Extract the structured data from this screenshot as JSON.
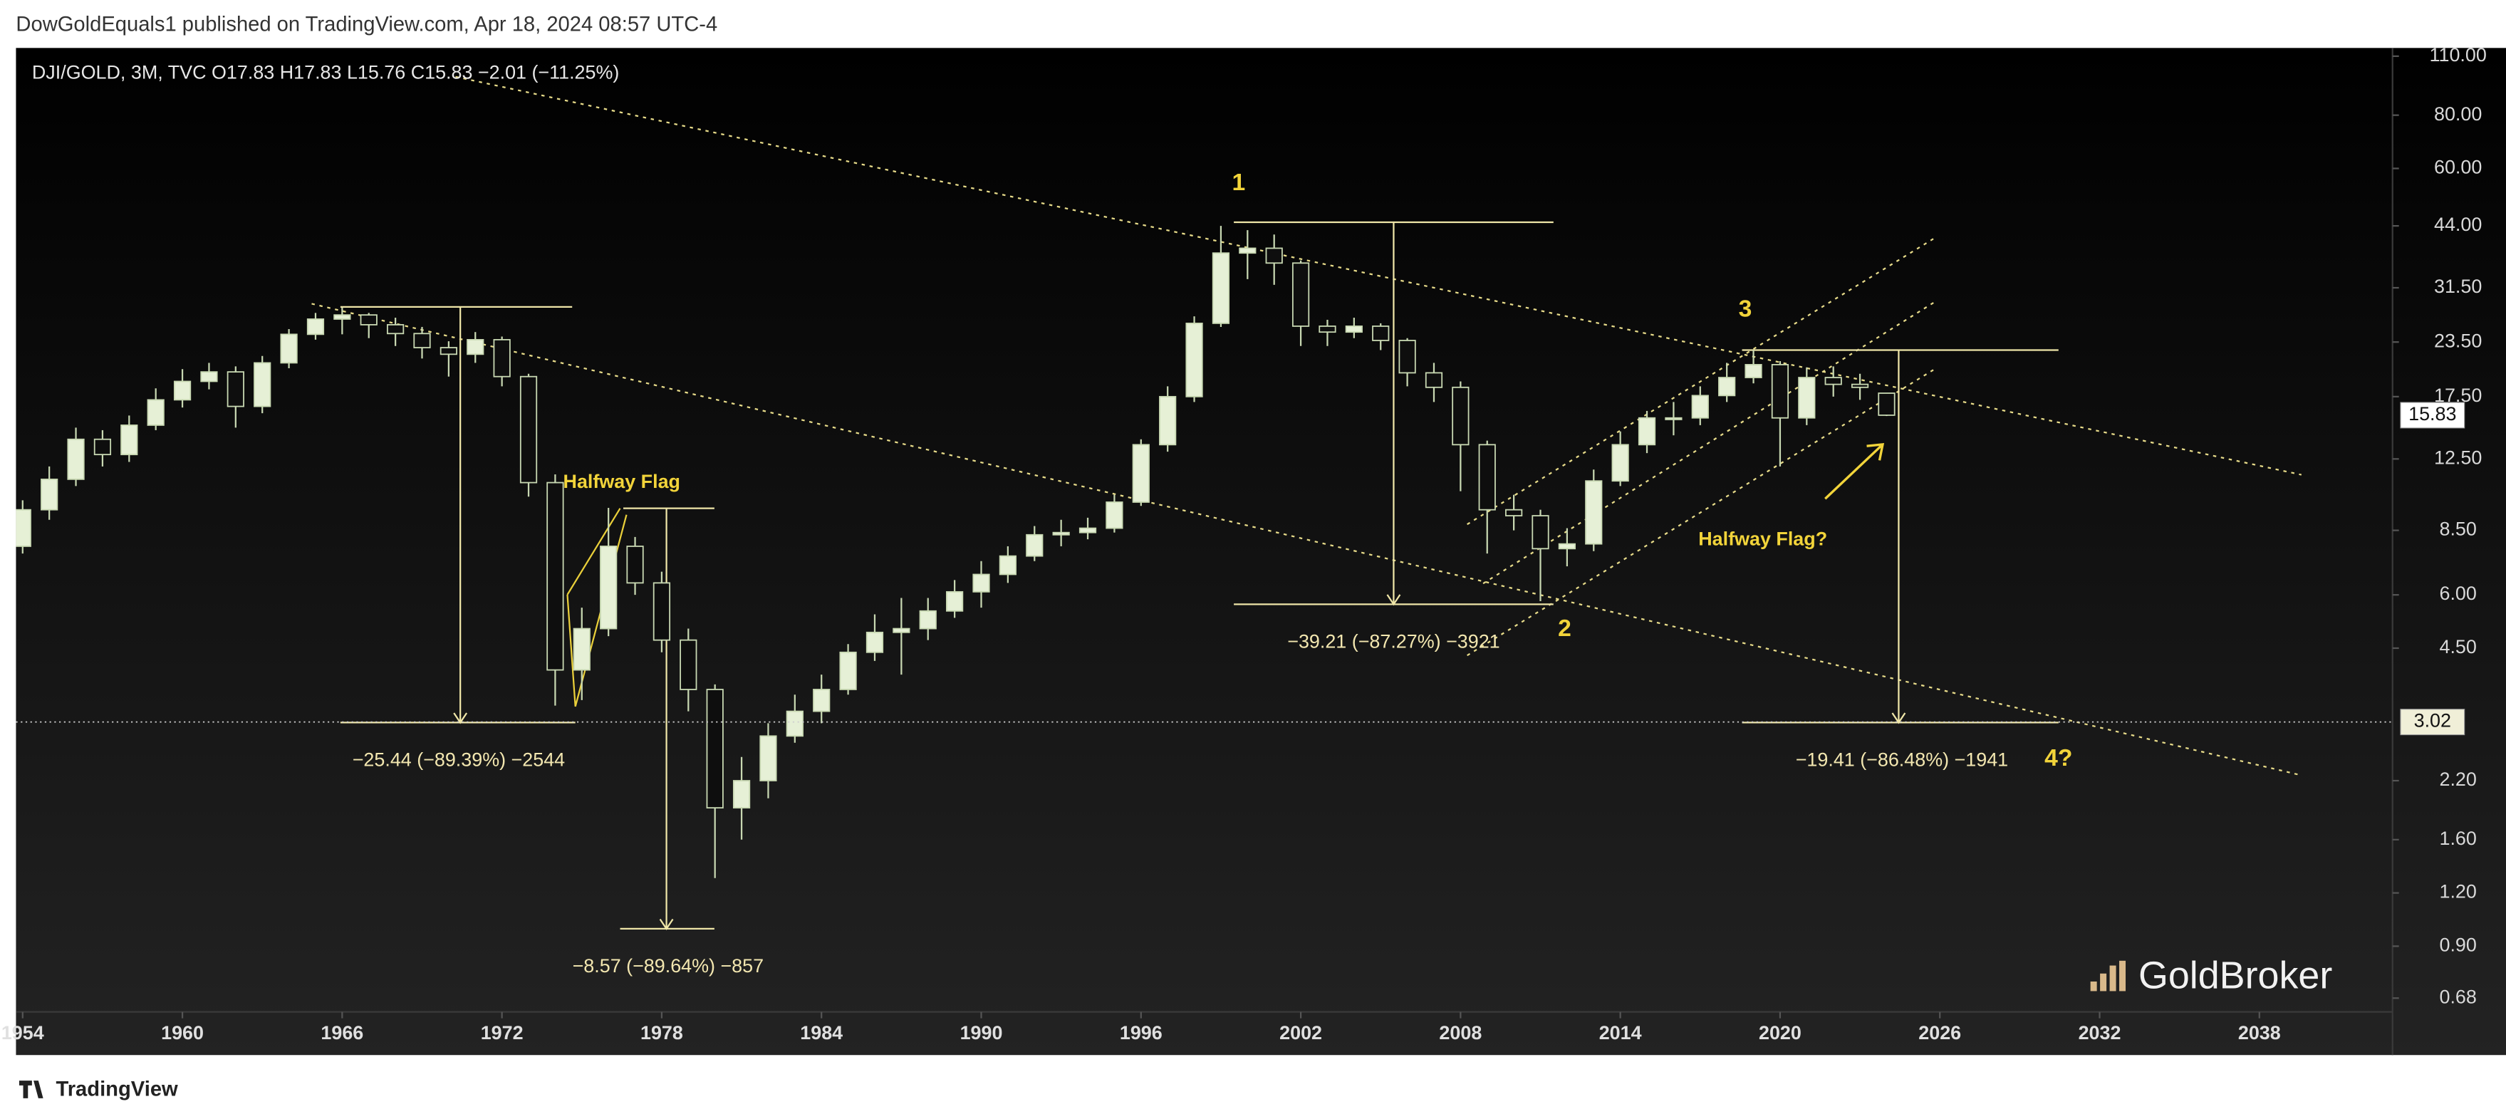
{
  "header": "DowGoldEquals1 published on TradingView.com, Apr 18, 2024 08:57 UTC-4",
  "footer": "TradingView",
  "watermark": "GoldBroker",
  "chart_data": {
    "type": "candlestick",
    "legend": "DJI/GOLD, 3M, TVC  O17.83  H17.83  L15.76  C15.83  −2.01 (−11.25%)",
    "x": [
      1954,
      1955,
      1956,
      1957,
      1958,
      1959,
      1960,
      1961,
      1962,
      1963,
      1964,
      1965,
      1966,
      1967,
      1968,
      1969,
      1970,
      1971,
      1972,
      1973,
      1974,
      1975,
      1976,
      1977,
      1978,
      1979,
      1980,
      1981,
      1982,
      1983,
      1984,
      1985,
      1986,
      1987,
      1988,
      1989,
      1990,
      1991,
      1992,
      1993,
      1994,
      1995,
      1996,
      1997,
      1998,
      1999,
      2000,
      2001,
      2002,
      2003,
      2004,
      2005,
      2006,
      2007,
      2008,
      2009,
      2010,
      2011,
      2012,
      2013,
      2014,
      2015,
      2016,
      2017,
      2018,
      2019,
      2020,
      2021,
      2022,
      2023,
      2024
    ],
    "open": [
      7.8,
      9.5,
      11.2,
      13.9,
      12.8,
      15.0,
      17.2,
      19.0,
      20.0,
      16.6,
      21.0,
      24.5,
      26.6,
      27.2,
      25.8,
      24.6,
      22.8,
      22.0,
      23.8,
      19.5,
      11.0,
      4.0,
      5.0,
      7.8,
      6.4,
      4.7,
      3.6,
      1.9,
      2.2,
      2.8,
      3.2,
      3.6,
      4.4,
      4.9,
      5.0,
      5.5,
      6.1,
      6.7,
      7.4,
      8.3,
      8.4,
      8.6,
      9.9,
      13.5,
      17.5,
      26.0,
      38.0,
      39.0,
      36.0,
      25.6,
      24.8,
      25.6,
      23.7,
      19.9,
      18.4,
      13.5,
      9.5,
      9.2,
      7.7,
      7.9,
      11.1,
      13.5,
      15.6,
      15.6,
      17.6,
      19.4,
      20.8,
      15.6,
      19.4,
      18.7,
      17.83
    ],
    "high": [
      10.0,
      12.0,
      14.8,
      14.6,
      15.8,
      18.3,
      20.3,
      21.0,
      20.6,
      21.8,
      25.2,
      27.5,
      28.3,
      27.5,
      26.8,
      25.5,
      23.6,
      24.8,
      24.2,
      19.8,
      11.5,
      5.6,
      9.6,
      8.2,
      6.8,
      5.0,
      3.7,
      2.5,
      3.0,
      3.5,
      3.9,
      4.6,
      5.4,
      5.9,
      5.9,
      6.5,
      7.2,
      7.8,
      8.7,
      9.0,
      9.1,
      10.3,
      13.9,
      18.5,
      27.0,
      44.0,
      43.0,
      42.0,
      36.5,
      26.5,
      26.8,
      26.0,
      24.0,
      21.0,
      19.0,
      13.8,
      10.3,
      9.5,
      8.6,
      11.8,
      14.5,
      16.2,
      17.0,
      18.5,
      21.0,
      22.5,
      21.2,
      20.5,
      20.6,
      19.8,
      17.83
    ],
    "low": [
      7.5,
      9.0,
      10.8,
      12.0,
      12.3,
      14.6,
      16.5,
      18.2,
      14.8,
      16.0,
      20.4,
      23.8,
      24.5,
      24.0,
      23.0,
      21.5,
      19.5,
      21.0,
      18.5,
      10.2,
      3.3,
      3.4,
      4.8,
      6.0,
      4.4,
      3.2,
      1.3,
      1.6,
      2.0,
      2.7,
      3.0,
      3.5,
      4.2,
      3.9,
      4.7,
      5.3,
      5.6,
      6.4,
      7.2,
      7.8,
      8.1,
      8.4,
      9.7,
      13.0,
      17.0,
      25.5,
      33.0,
      32.0,
      23.0,
      23.0,
      24.0,
      22.5,
      18.5,
      17.0,
      10.5,
      7.5,
      8.5,
      5.8,
      7.0,
      7.6,
      10.8,
      12.9,
      14.2,
      15.0,
      17.0,
      18.8,
      12.0,
      15.0,
      17.5,
      17.2,
      15.76
    ],
    "close": [
      9.5,
      11.2,
      13.9,
      12.8,
      15.0,
      17.2,
      19.0,
      20.0,
      16.6,
      21.0,
      24.5,
      26.6,
      27.2,
      25.8,
      24.6,
      22.8,
      22.0,
      23.8,
      19.5,
      11.0,
      4.0,
      5.0,
      7.8,
      6.4,
      4.7,
      3.6,
      1.9,
      2.2,
      2.8,
      3.2,
      3.6,
      4.4,
      4.9,
      5.0,
      5.5,
      6.1,
      6.7,
      7.4,
      8.3,
      8.4,
      8.6,
      9.9,
      13.5,
      17.5,
      26.0,
      38.0,
      39.0,
      36.0,
      25.6,
      24.8,
      25.6,
      23.7,
      19.9,
      18.4,
      13.5,
      9.5,
      9.2,
      7.7,
      7.9,
      11.1,
      13.5,
      15.6,
      15.6,
      17.6,
      19.4,
      20.8,
      15.6,
      19.4,
      18.7,
      18.4,
      15.83
    ],
    "up_color": "#e6f0d6",
    "down_color": "#0e0e0e",
    "wick_color": "#c8d8b2",
    "log_scale": true,
    "grid": false,
    "xlim": [
      1953.75,
      2043
    ],
    "ylim": [
      0.5,
      115
    ],
    "xticks": [
      1954,
      1960,
      1966,
      1972,
      1978,
      1984,
      1990,
      1996,
      2002,
      2008,
      2014,
      2020,
      2026,
      2032,
      2038
    ],
    "yticks": [
      {
        "value": 110,
        "label": "110.00"
      },
      {
        "value": 80,
        "label": "80.00"
      },
      {
        "value": 60,
        "label": "60.00"
      },
      {
        "value": 44,
        "label": "44.00"
      },
      {
        "value": 31.5,
        "label": "31.50"
      },
      {
        "value": 23.5,
        "label": "23.50"
      },
      {
        "value": 17.5,
        "label": "17.50"
      },
      {
        "value": 12.5,
        "label": "12.50"
      },
      {
        "value": 8.5,
        "label": "8.50"
      },
      {
        "value": 6,
        "label": "6.00"
      },
      {
        "value": 4.5,
        "label": "4.50"
      },
      {
        "value": 2.2,
        "label": "2.20"
      },
      {
        "value": 1.6,
        "label": "1.60"
      },
      {
        "value": 1.2,
        "label": "1.20"
      },
      {
        "value": 0.9,
        "label": "0.90"
      },
      0.68
    ],
    "price_tags": [
      15.83,
      3.02
    ],
    "annotations": [
      "1",
      "2",
      "3",
      "4?",
      "Halfway Flag",
      "Halfway Flag?",
      "−25.44 (−89.39%) −2544",
      "−8.57 (−89.64%) −857",
      "−39.21 (−87.27%) −3921",
      "−19.41 (−86.48%) −1941"
    ]
  }
}
